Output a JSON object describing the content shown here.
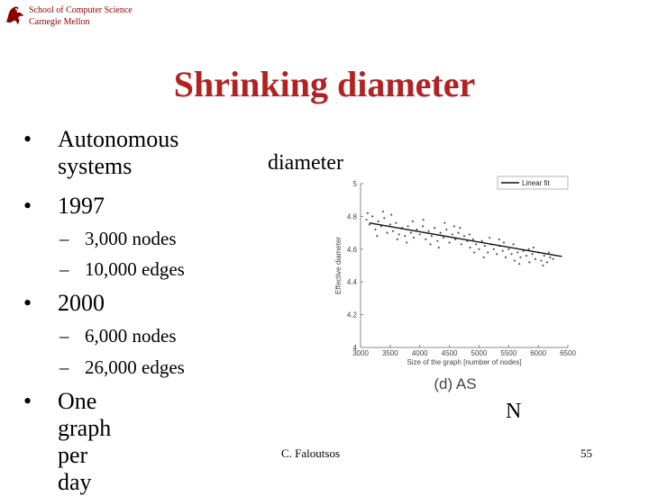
{
  "header": {
    "logo_icon": "griffin-logo-icon",
    "school_line1": "School of Computer Science",
    "school_line2": "Carnegie Mellon"
  },
  "slide": {
    "title": "Shrinking diameter",
    "bullets": [
      {
        "text_line1": "Autonomous",
        "text_line2": "systems"
      },
      {
        "text": "1997",
        "subs": [
          "3,000 nodes",
          "10,000 edges"
        ]
      },
      {
        "text": "2000",
        "subs": [
          "6,000 nodes",
          "26,000 edges"
        ]
      },
      {
        "text": "One graph per day"
      }
    ],
    "bullet_symbol": "•",
    "dash_symbol": "–",
    "diameter_label": "diameter",
    "n_label": "N",
    "footer": "C. Faloutsos",
    "page_number": "55"
  },
  "chart_data": {
    "type": "scatter",
    "title": "",
    "caption": "(d) AS",
    "xlabel": "Size of the graph [number of nodes]",
    "ylabel": "Effective diameter",
    "xlim": [
      3000,
      6500
    ],
    "ylim": [
      4,
      5
    ],
    "x_ticks": [
      "3000",
      "3500",
      "4000",
      "4500",
      "5000",
      "5500",
      "6000",
      "6500"
    ],
    "y_ticks": [
      "4",
      "4.2",
      "4.4",
      "4.6",
      "4.8",
      "5"
    ],
    "legend": {
      "position": "top-right",
      "entries": [
        "Linear fit"
      ]
    },
    "fit_line": {
      "x": [
        3150,
        6400
      ],
      "y": [
        4.76,
        4.555
      ]
    },
    "series": [
      {
        "marker": "dot",
        "color": "#555555",
        "points": [
          [
            3100,
            4.78
          ],
          [
            3150,
            4.75
          ],
          [
            3200,
            4.8
          ],
          [
            3250,
            4.72
          ],
          [
            3300,
            4.77
          ],
          [
            3350,
            4.74
          ],
          [
            3400,
            4.79
          ],
          [
            3450,
            4.7
          ],
          [
            3500,
            4.75
          ],
          [
            3550,
            4.71
          ],
          [
            3600,
            4.76
          ],
          [
            3650,
            4.69
          ],
          [
            3700,
            4.73
          ],
          [
            3750,
            4.68
          ],
          [
            3800,
            4.74
          ],
          [
            3850,
            4.7
          ],
          [
            3900,
            4.67
          ],
          [
            3950,
            4.72
          ],
          [
            4000,
            4.69
          ],
          [
            4050,
            4.74
          ],
          [
            4100,
            4.66
          ],
          [
            4150,
            4.71
          ],
          [
            4200,
            4.68
          ],
          [
            4250,
            4.73
          ],
          [
            4300,
            4.65
          ],
          [
            4350,
            4.7
          ],
          [
            4400,
            4.67
          ],
          [
            4450,
            4.72
          ],
          [
            4500,
            4.64
          ],
          [
            4550,
            4.69
          ],
          [
            4600,
            4.66
          ],
          [
            4650,
            4.7
          ],
          [
            4700,
            4.63
          ],
          [
            4750,
            4.68
          ],
          [
            4800,
            4.65
          ],
          [
            4850,
            4.61
          ],
          [
            4900,
            4.66
          ],
          [
            4950,
            4.63
          ],
          [
            5000,
            4.6
          ],
          [
            5050,
            4.65
          ],
          [
            5100,
            4.62
          ],
          [
            5150,
            4.58
          ],
          [
            5200,
            4.63
          ],
          [
            5250,
            4.6
          ],
          [
            5300,
            4.57
          ],
          [
            5350,
            4.62
          ],
          [
            5400,
            4.59
          ],
          [
            5450,
            4.55
          ],
          [
            5500,
            4.6
          ],
          [
            5550,
            4.57
          ],
          [
            5600,
            4.53
          ],
          [
            5650,
            4.58
          ],
          [
            5700,
            4.55
          ],
          [
            5750,
            4.59
          ],
          [
            5800,
            4.56
          ],
          [
            5850,
            4.52
          ],
          [
            5900,
            4.57
          ],
          [
            5950,
            4.54
          ],
          [
            6000,
            4.58
          ],
          [
            6050,
            4.53
          ],
          [
            6100,
            4.56
          ],
          [
            6150,
            4.52
          ],
          [
            6200,
            4.55
          ],
          [
            6250,
            4.54
          ],
          [
            3120,
            4.82
          ],
          [
            3380,
            4.83
          ],
          [
            3620,
            4.66
          ],
          [
            3880,
            4.77
          ],
          [
            4180,
            4.63
          ],
          [
            4420,
            4.76
          ],
          [
            4680,
            4.73
          ],
          [
            4920,
            4.58
          ],
          [
            5180,
            4.67
          ],
          [
            5420,
            4.64
          ],
          [
            5680,
            4.51
          ],
          [
            5920,
            4.61
          ],
          [
            6180,
            4.58
          ],
          [
            3280,
            4.68
          ],
          [
            3520,
            4.81
          ],
          [
            3780,
            4.64
          ],
          [
            4060,
            4.78
          ],
          [
            4320,
            4.61
          ],
          [
            4580,
            4.74
          ],
          [
            4840,
            4.69
          ],
          [
            5080,
            4.55
          ],
          [
            5340,
            4.66
          ],
          [
            5580,
            4.63
          ],
          [
            5840,
            4.6
          ],
          [
            6080,
            4.5
          ]
        ]
      }
    ]
  }
}
